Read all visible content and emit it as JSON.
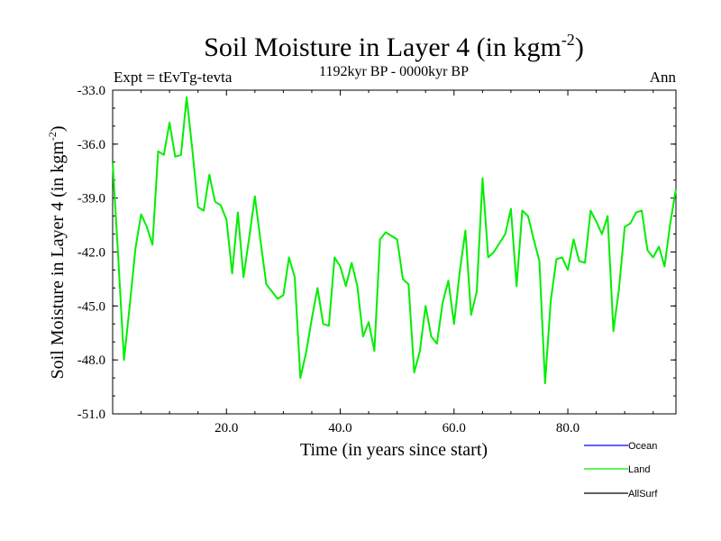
{
  "chart_data": {
    "type": "line",
    "title": "Soil Moisture in Layer 4 (in kgm",
    "title_sup": "-2",
    "title_end": ")",
    "subtitle_left": "Expt = tEvTg-tevta",
    "subtitle_center": "1192kyr BP - 0000kyr BP",
    "subtitle_right": "Ann",
    "xlabel": "Time (in years since start)",
    "ylabel": "Soil Moisture in Layer 4 (in kgm",
    "ylabel_sup": "-2",
    "ylabel_end": ")",
    "xlim": [
      0,
      99
    ],
    "ylim": [
      -51.0,
      -33.0
    ],
    "xticks": [
      20.0,
      40.0,
      60.0,
      80.0
    ],
    "xtick_labels": [
      "20.0",
      "40.0",
      "60.0",
      "80.0"
    ],
    "yticks": [
      -33.0,
      -36.0,
      -39.0,
      -42.0,
      -45.0,
      -48.0,
      -51.0
    ],
    "ytick_labels": [
      "-33.0",
      "-36.0",
      "-39.0",
      "-42.0",
      "-45.0",
      "-48.0",
      "-51.0"
    ],
    "legend": [
      {
        "name": "Ocean",
        "color": "#0000ff"
      },
      {
        "name": "Land",
        "color": "#00ee00"
      },
      {
        "name": "AllSurf",
        "color": "#000000"
      }
    ],
    "series": [
      {
        "name": "Land",
        "color": "#00ee00",
        "x": [
          0,
          1,
          2,
          3,
          4,
          5,
          6,
          7,
          8,
          9,
          10,
          11,
          12,
          13,
          14,
          15,
          16,
          17,
          18,
          19,
          20,
          21,
          22,
          23,
          24,
          25,
          26,
          27,
          28,
          29,
          30,
          31,
          32,
          33,
          34,
          35,
          36,
          37,
          38,
          39,
          40,
          41,
          42,
          43,
          44,
          45,
          46,
          47,
          48,
          49,
          50,
          51,
          52,
          53,
          54,
          55,
          56,
          57,
          58,
          59,
          60,
          61,
          62,
          63,
          64,
          65,
          66,
          67,
          68,
          69,
          70,
          71,
          72,
          73,
          74,
          75,
          76,
          77,
          78,
          79,
          80,
          81,
          82,
          83,
          84,
          85,
          86,
          87,
          88,
          89,
          90,
          91,
          92,
          93,
          94,
          95,
          96,
          97,
          98,
          99
        ],
        "values": [
          -37.0,
          -42.4,
          -48.0,
          -45.0,
          -41.8,
          -39.9,
          -40.6,
          -41.6,
          -36.4,
          -36.6,
          -34.8,
          -36.7,
          -36.6,
          -33.4,
          -36.3,
          -39.5,
          -39.7,
          -37.7,
          -39.2,
          -39.4,
          -40.2,
          -43.2,
          -39.8,
          -43.4,
          -41.2,
          -38.9,
          -41.4,
          -43.8,
          -44.2,
          -44.6,
          -44.4,
          -42.3,
          -43.4,
          -49.0,
          -47.6,
          -45.7,
          -44.0,
          -46.0,
          -46.1,
          -42.3,
          -42.8,
          -43.9,
          -42.6,
          -43.9,
          -46.7,
          -45.9,
          -47.5,
          -41.3,
          -40.9,
          -41.1,
          -41.3,
          -43.5,
          -43.8,
          -48.7,
          -47.5,
          -45.0,
          -46.7,
          -47.1,
          -44.8,
          -43.6,
          -46.0,
          -43.1,
          -40.8,
          -45.5,
          -44.2,
          -37.9,
          -42.3,
          -42.0,
          -41.5,
          -41.0,
          -39.6,
          -43.9,
          -39.7,
          -40.0,
          -41.3,
          -42.5,
          -49.3,
          -44.7,
          -42.4,
          -42.3,
          -43.0,
          -41.3,
          -42.5,
          -42.6,
          -39.7,
          -40.3,
          -41.0,
          -40.0,
          -46.4,
          -44.0,
          -40.6,
          -40.4,
          -39.8,
          -39.7,
          -41.9,
          -42.3,
          -41.7,
          -42.8,
          -40.4,
          -38.5
        ]
      }
    ]
  }
}
